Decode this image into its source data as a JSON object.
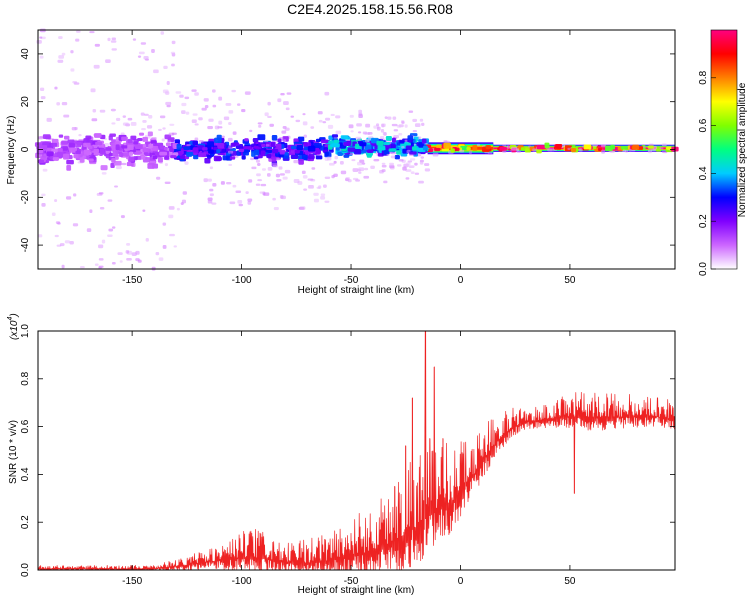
{
  "title": "C2E4.2025.158.15.56.R08",
  "chart_data": [
    {
      "type": "heatmap",
      "xlabel": "Height of straight line (km)",
      "ylabel": "Frequency (Hz)",
      "xlim": [
        -193,
        98
      ],
      "ylim": [
        -50,
        50
      ],
      "xticks": [
        -150,
        -100,
        -50,
        0,
        50
      ],
      "yticks": [
        -40,
        -20,
        0,
        20,
        40
      ],
      "colorbar": {
        "label": "Normalized spectral amplitude",
        "range": [
          0,
          1
        ],
        "ticks": [
          0.0,
          0.2,
          0.4,
          0.6,
          0.8
        ],
        "colors": [
          "#ffffff",
          "#cc66ff",
          "#8000ff",
          "#0000ff",
          "#00ccff",
          "#00ff80",
          "#80ff00",
          "#ffff00",
          "#ff8000",
          "#ff0000",
          "#ff0080"
        ]
      },
      "bands": [
        {
          "x": [
            -193,
            -130
          ],
          "center": 0,
          "halfwidth": 10,
          "level": 0.15,
          "scatter_halfwidth": 50
        },
        {
          "x": [
            -130,
            -60
          ],
          "center": 0,
          "halfwidth": 7,
          "level": 0.3,
          "scatter_halfwidth": 25
        },
        {
          "x": [
            -60,
            -15
          ],
          "center": 1,
          "halfwidth": 6,
          "level": 0.4,
          "scatter_halfwidth": 15
        },
        {
          "x": [
            -15,
            15
          ],
          "center": 0.5,
          "halfwidth": 2.5,
          "level": 0.85,
          "scatter_halfwidth": 3
        },
        {
          "x": [
            15,
            98
          ],
          "center": 0.5,
          "halfwidth": 1.5,
          "level": 1.0,
          "scatter_halfwidth": 1.5
        }
      ]
    },
    {
      "type": "line",
      "xlabel": "Height of straight line (km)",
      "ylabel": "SNR (10 * v/v)",
      "y_multiplier": "(x10",
      "y_multiplier_exp": "4",
      "xlim": [
        -193,
        98
      ],
      "ylim": [
        0,
        1.0
      ],
      "xticks": [
        -150,
        -100,
        -50,
        0,
        50
      ],
      "yticks": [
        0.0,
        0.2,
        0.4,
        0.6,
        0.8,
        1.0
      ],
      "color": "#ee2222",
      "envelope": {
        "x": [
          -193,
          -140,
          -125,
          -110,
          -100,
          -90,
          -80,
          -70,
          -60,
          -50,
          -40,
          -30,
          -25,
          -20,
          -18,
          -15,
          -10,
          -5,
          0,
          5,
          10,
          15,
          20,
          25,
          30,
          40,
          50,
          60,
          70,
          80,
          90,
          98
        ],
        "base": [
          0.005,
          0.005,
          0.02,
          0.04,
          0.05,
          0.05,
          0.03,
          0.03,
          0.04,
          0.06,
          0.08,
          0.12,
          0.15,
          0.18,
          0.2,
          0.22,
          0.25,
          0.28,
          0.32,
          0.38,
          0.45,
          0.52,
          0.57,
          0.6,
          0.62,
          0.63,
          0.64,
          0.64,
          0.64,
          0.64,
          0.64,
          0.63
        ],
        "amp": [
          0.015,
          0.015,
          0.04,
          0.07,
          0.12,
          0.12,
          0.08,
          0.1,
          0.13,
          0.17,
          0.2,
          0.25,
          0.35,
          0.3,
          0.35,
          0.3,
          0.25,
          0.28,
          0.22,
          0.22,
          0.15,
          0.12,
          0.1,
          0.08,
          0.06,
          0.07,
          0.1,
          0.12,
          0.1,
          0.1,
          0.08,
          0.1
        ]
      },
      "spikes": [
        {
          "x": -30,
          "y": 0.35
        },
        {
          "x": -25,
          "y": 0.52
        },
        {
          "x": -22,
          "y": 0.72
        },
        {
          "x": -16,
          "y": 1.0
        },
        {
          "x": -14,
          "y": 0.55
        },
        {
          "x": -12,
          "y": 0.85
        },
        {
          "x": -8,
          "y": 0.55
        },
        {
          "x": 52,
          "y": 0.32
        },
        {
          "x": 90,
          "y": 0.72
        }
      ]
    }
  ]
}
